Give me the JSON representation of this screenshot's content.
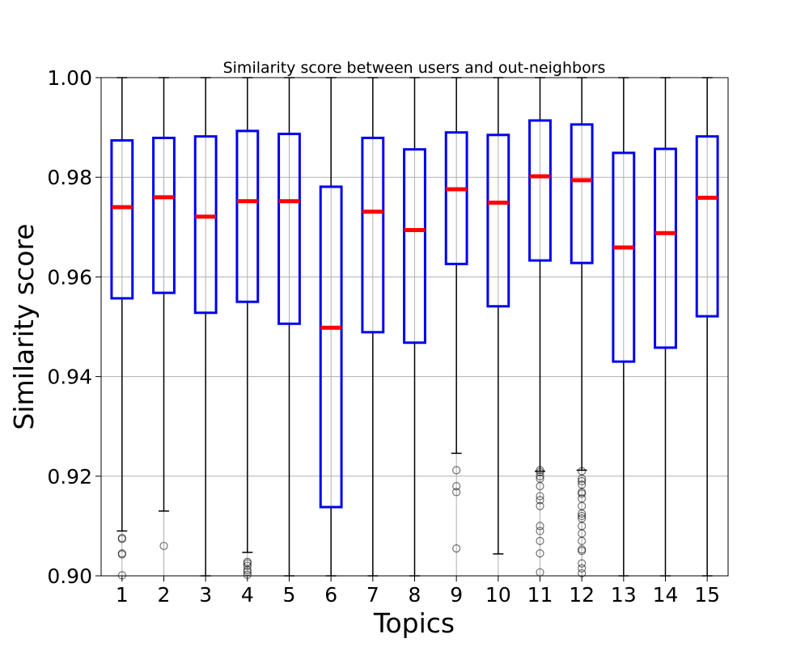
{
  "chart_data": {
    "type": "box",
    "title": "Similarity score between users and out-neighbors",
    "xlabel": "Topics",
    "ylabel": "Similarity score",
    "ylim": [
      0.9,
      1.0
    ],
    "yticks": [
      "0.90",
      "0.92",
      "0.94",
      "0.96",
      "0.98",
      "1.00"
    ],
    "categories": [
      "1",
      "2",
      "3",
      "4",
      "5",
      "6",
      "7",
      "8",
      "9",
      "10",
      "11",
      "12",
      "13",
      "14",
      "15"
    ],
    "grid": true,
    "colors": {
      "box": "#0000ee",
      "median": "#ff0000",
      "whisker": "#000000",
      "grid": "#b0b0b0"
    },
    "boxes": [
      {
        "q1": 0.9557,
        "median": 0.974,
        "q3": 0.9874,
        "whislo": 0.909,
        "whishi": 1.0,
        "fliers": [
          0.9076,
          0.9074,
          0.9045,
          0.9043,
          0.9001
        ]
      },
      {
        "q1": 0.9568,
        "median": 0.976,
        "q3": 0.9879,
        "whislo": 0.913,
        "whishi": 1.0,
        "fliers": [
          0.906
        ]
      },
      {
        "q1": 0.9528,
        "median": 0.9721,
        "q3": 0.9882,
        "whislo": 0.9,
        "whishi": 1.0,
        "fliers": []
      },
      {
        "q1": 0.955,
        "median": 0.9752,
        "q3": 0.9893,
        "whislo": 0.9047,
        "whishi": 1.0,
        "fliers": [
          0.9028,
          0.9025,
          0.902,
          0.9012,
          0.9008,
          0.9002
        ]
      },
      {
        "q1": 0.9506,
        "median": 0.9752,
        "q3": 0.9887,
        "whislo": 0.9,
        "whishi": 1.0,
        "fliers": []
      },
      {
        "q1": 0.9138,
        "median": 0.9498,
        "q3": 0.9781,
        "whislo": 0.9,
        "whishi": 1.0,
        "fliers": []
      },
      {
        "q1": 0.9489,
        "median": 0.9731,
        "q3": 0.9879,
        "whislo": 0.9,
        "whishi": 1.0,
        "fliers": []
      },
      {
        "q1": 0.9468,
        "median": 0.9694,
        "q3": 0.9856,
        "whislo": 0.9,
        "whishi": 1.0,
        "fliers": []
      },
      {
        "q1": 0.9626,
        "median": 0.9776,
        "q3": 0.989,
        "whislo": 0.9246,
        "whishi": 1.0,
        "fliers": [
          0.9212,
          0.918,
          0.9168,
          0.9055
        ]
      },
      {
        "q1": 0.9541,
        "median": 0.9749,
        "q3": 0.9885,
        "whislo": 0.9044,
        "whishi": 1.0,
        "fliers": []
      },
      {
        "q1": 0.9633,
        "median": 0.9802,
        "q3": 0.9914,
        "whislo": 0.921,
        "whishi": 1.0,
        "fliers": [
          0.9212,
          0.9208,
          0.92,
          0.9195,
          0.918,
          0.916,
          0.9152,
          0.914,
          0.91,
          0.909,
          0.907,
          0.9045,
          0.9007
        ]
      },
      {
        "q1": 0.9628,
        "median": 0.9794,
        "q3": 0.9906,
        "whislo": 0.9212,
        "whishi": 1.0,
        "fliers": [
          0.921,
          0.9195,
          0.919,
          0.9183,
          0.9168,
          0.9165,
          0.9155,
          0.914,
          0.9125,
          0.912,
          0.9115,
          0.91,
          0.9085,
          0.907,
          0.9053,
          0.905,
          0.9025,
          0.9015,
          0.9005
        ]
      },
      {
        "q1": 0.943,
        "median": 0.9659,
        "q3": 0.9849,
        "whislo": 0.9,
        "whishi": 1.0,
        "fliers": []
      },
      {
        "q1": 0.9458,
        "median": 0.9688,
        "q3": 0.9857,
        "whislo": 0.9,
        "whishi": 1.0,
        "fliers": []
      },
      {
        "q1": 0.9521,
        "median": 0.9759,
        "q3": 0.9882,
        "whislo": 0.9,
        "whishi": 1.0,
        "fliers": []
      }
    ]
  }
}
